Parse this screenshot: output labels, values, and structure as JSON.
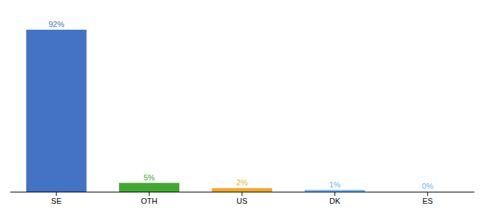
{
  "chart_data": {
    "type": "bar",
    "categories": [
      "SE",
      "OTH",
      "US",
      "DK",
      "ES"
    ],
    "values": [
      92,
      5,
      2,
      1,
      0
    ],
    "value_labels": [
      "92%",
      "5%",
      "2%",
      "1%",
      "0%"
    ],
    "colors": [
      "#4472c4",
      "#43a832",
      "#f5a623",
      "#64b5f6",
      "#64b5f6"
    ],
    "ylim": [
      0,
      100
    ],
    "data_labels": true,
    "tick_labels": "x"
  }
}
